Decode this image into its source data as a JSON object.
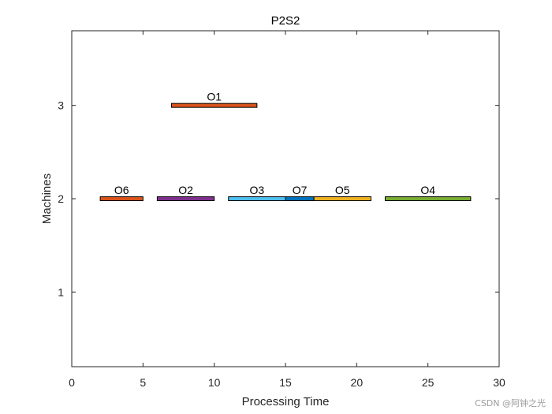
{
  "chart_data": {
    "type": "bar",
    "subtype": "gantt",
    "title": "P2S2",
    "xlabel": "Processing Time",
    "ylabel": "Machines",
    "xlim": [
      0,
      30
    ],
    "ylim": [
      0.2,
      3.8
    ],
    "xticks": [
      0,
      5,
      10,
      15,
      20,
      25,
      30
    ],
    "yticks": [
      1,
      2,
      3
    ],
    "grid": false,
    "legend": "none",
    "bars": [
      {
        "label": "O1",
        "machine": 3,
        "start": 7,
        "end": 13,
        "color": "#d95319"
      },
      {
        "label": "O6",
        "machine": 2,
        "start": 2,
        "end": 5,
        "color": "#d95319"
      },
      {
        "label": "O2",
        "machine": 2,
        "start": 6,
        "end": 10,
        "color": "#7e2f8e"
      },
      {
        "label": "O3",
        "machine": 2,
        "start": 11,
        "end": 15,
        "color": "#4dbeee"
      },
      {
        "label": "O7",
        "machine": 2,
        "start": 15,
        "end": 17,
        "color": "#0072bd"
      },
      {
        "label": "O5",
        "machine": 2,
        "start": 17,
        "end": 21,
        "color": "#edb120"
      },
      {
        "label": "O4",
        "machine": 2,
        "start": 22,
        "end": 28,
        "color": "#77ac30"
      }
    ]
  },
  "watermark": "CSDN @阿钟之光"
}
